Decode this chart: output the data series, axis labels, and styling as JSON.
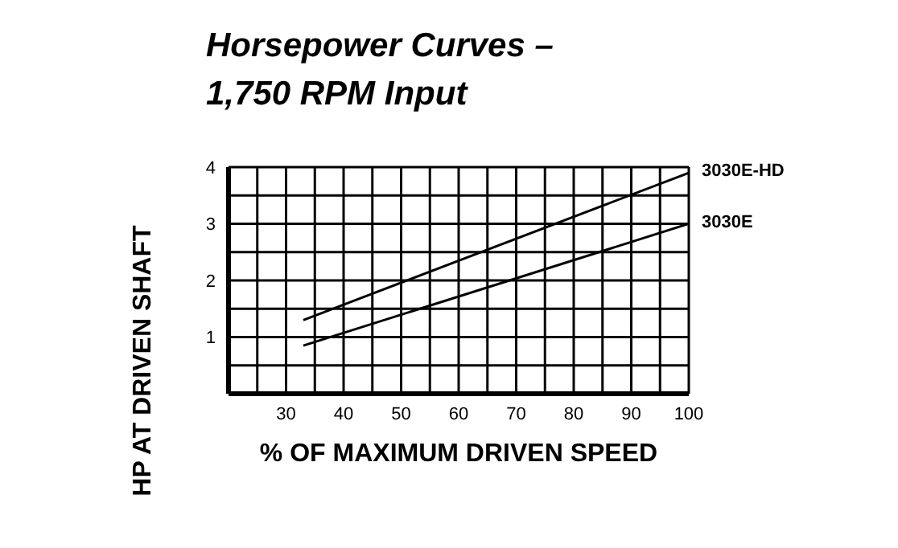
{
  "chart_data": {
    "type": "line",
    "title": "Horsepower Curves –\n1,750 RPM Input",
    "xlabel": "% OF MAXIMUM DRIVEN SPEED",
    "ylabel": "HP AT DRIVEN SHAFT",
    "x": [
      33,
      100
    ],
    "series": [
      {
        "name": "3030E-HD",
        "color": "#000000",
        "values": [
          1.3,
          3.9
        ]
      },
      {
        "name": "3030E",
        "color": "#000000",
        "values": [
          0.85,
          3.0
        ]
      }
    ],
    "xlim": [
      20,
      100
    ],
    "xticks": [
      {
        "value": 20,
        "label": null
      },
      {
        "value": 25,
        "label": null
      },
      30,
      {
        "value": 35,
        "label": null
      },
      40,
      {
        "value": 45,
        "label": null
      },
      50,
      {
        "value": 55,
        "label": null
      },
      60,
      {
        "value": 65,
        "label": null
      },
      70,
      {
        "value": 75,
        "label": null
      },
      80,
      {
        "value": 85,
        "label": null
      },
      90,
      {
        "value": 95,
        "label": null
      },
      100
    ],
    "ylim": [
      0,
      4
    ],
    "yticks": [
      {
        "value": 0,
        "label": null
      },
      {
        "value": 0.5,
        "label": null
      },
      1,
      {
        "value": 1.5,
        "label": null
      },
      2,
      {
        "value": 2.5,
        "label": null
      },
      3,
      {
        "value": 3.5,
        "label": null
      },
      4
    ],
    "grid": true,
    "marker": "none",
    "line_style": "solid"
  }
}
